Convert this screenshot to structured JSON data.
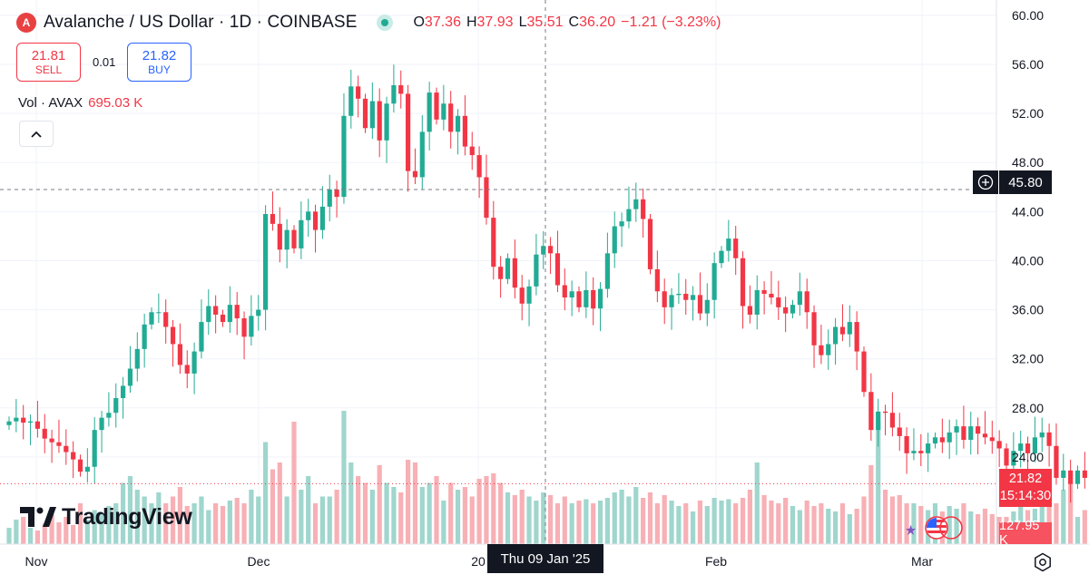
{
  "header": {
    "logo_letter": "A",
    "title": "Avalanche / US Dollar · 1D · COINBASE",
    "o_label": "O",
    "o_value": "37.36",
    "h_label": "H",
    "h_value": "37.93",
    "l_label": "L",
    "l_value": "35.51",
    "c_label": "C",
    "c_value": "36.20",
    "change": "−1.21 (−3.23%)"
  },
  "trade": {
    "sell_price": "21.81",
    "sell_label": "SELL",
    "spread": "0.01",
    "buy_price": "21.82",
    "buy_label": "BUY"
  },
  "volume_legend": {
    "label": "Vol · AVAX",
    "value": "695.03 K"
  },
  "crosshair": {
    "price_label": "45.80",
    "date_label": "Thu 09 Jan '25"
  },
  "last_price": {
    "price": "21.82",
    "countdown": "15:14:30"
  },
  "volume_last": "127.95 K",
  "brand": "TradingView",
  "icons": {
    "logo": "avalanche-logo",
    "settings": "gear-icon",
    "collapse": "chevron-up-icon",
    "crosshair_add": "plus-circle-icon",
    "events": "us-flag-icons"
  },
  "colors": {
    "up": "#22ab94",
    "down": "#f23645",
    "up_vol": "#9fd6cd",
    "down_vol": "#f7b0b5"
  },
  "chart_data": {
    "type": "candlestick",
    "title": "Avalanche / US Dollar · 1D · COINBASE",
    "y_ticks": [
      "60.00",
      "56.00",
      "52.00",
      "48.00",
      "44.00",
      "40.00",
      "36.00",
      "32.00",
      "28.00",
      "24.00"
    ],
    "x_ticks": [
      "Nov",
      "Dec",
      "20",
      "Feb",
      "Mar"
    ],
    "ylim": [
      20.3,
      60.8
    ],
    "grid": true,
    "closes": [
      26.9,
      27.2,
      26.8,
      26.9,
      26.3,
      25.5,
      25.2,
      24.9,
      24.4,
      23.8,
      22.8,
      23.2,
      26.2,
      27.2,
      27.6,
      28.8,
      29.8,
      31.2,
      32.8,
      34.8,
      35.8,
      35.8,
      34.6,
      33.2,
      31.5,
      30.8,
      32.6,
      35.0,
      36.3,
      35.6,
      35.0,
      36.4,
      35.3,
      33.8,
      35.5,
      36.0,
      43.8,
      43.0,
      40.9,
      42.5,
      41.0,
      43.3,
      44.0,
      42.5,
      44.4,
      45.8,
      45.2,
      51.8,
      54.2,
      53.2,
      50.8,
      53.0,
      49.8,
      52.8,
      54.3,
      53.6,
      47.3,
      46.8,
      50.5,
      53.7,
      51.5,
      52.8,
      50.5,
      51.8,
      49.3,
      48.6,
      46.8,
      43.5,
      39.5,
      38.5,
      40.2,
      37.8,
      36.5,
      37.9,
      40.5,
      41.2,
      40.6,
      38.0,
      37.0,
      37.5,
      36.2,
      37.6,
      36.1,
      37.7,
      40.6,
      42.8,
      43.2,
      44.2,
      45.0,
      43.4,
      39.3,
      37.5,
      36.2,
      37.2,
      37.3,
      36.8,
      37.2,
      35.7,
      36.8,
      39.8,
      40.8,
      41.8,
      40.2,
      36.3,
      35.6,
      37.6,
      37.3,
      37.0,
      36.2,
      35.7,
      36.4,
      37.5,
      35.8,
      33.1,
      32.3,
      33.2,
      34.6,
      34.0,
      35.0,
      32.6,
      29.3,
      26.2,
      27.7,
      27.6,
      26.4,
      25.7,
      24.3,
      24.5,
      24.3,
      25.1,
      25.6,
      25.2,
      26.0,
      26.5,
      25.4,
      26.5,
      25.9,
      25.6,
      25.3,
      24.7,
      23.3,
      24.5,
      25.1,
      24.3,
      25.6,
      26.0,
      24.9,
      22.3,
      22.9,
      21.8,
      22.9,
      22.3,
      21.9,
      21.8
    ]
  }
}
